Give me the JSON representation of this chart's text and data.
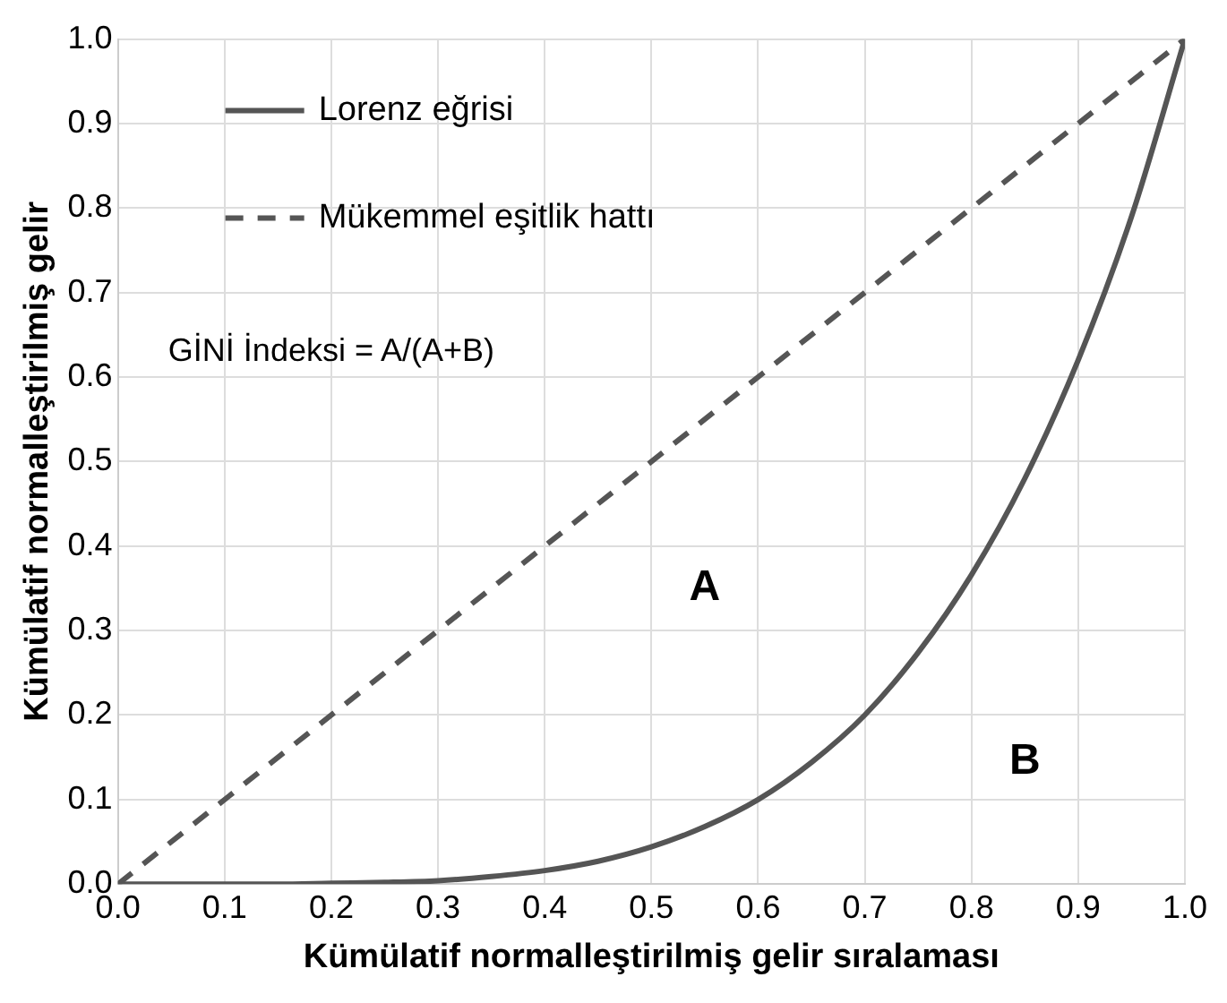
{
  "chart_data": {
    "type": "line",
    "xlabel": "Kümülatif normalleştirilmiş gelir sıralaması",
    "ylabel": "Kümülatif normalleştirilmiş gelir",
    "xlim": [
      0,
      1
    ],
    "ylim": [
      0,
      1
    ],
    "xticks": [
      {
        "value": 0,
        "label": "0.0"
      },
      0.1,
      0.2,
      0.3,
      0.4,
      0.5,
      0.6,
      0.7,
      0.8,
      0.9,
      {
        "value": 1,
        "label": "1.0"
      }
    ],
    "yticks": [
      {
        "value": 0,
        "label": "0.0"
      },
      0.1,
      0.2,
      0.3,
      0.4,
      0.5,
      0.6,
      0.7,
      0.8,
      0.9,
      {
        "value": 1,
        "label": "1.0"
      }
    ],
    "grid": true,
    "legend": "top left",
    "marker": "none",
    "series": [
      {
        "name": "Lorenz eğrisi",
        "color": "#555555",
        "line_style": "solid",
        "x": [
          0,
          0.05,
          0.1,
          0.15,
          0.2,
          0.25,
          0.3,
          0.35,
          0.4,
          0.45,
          0.5,
          0.55,
          0.6,
          0.65,
          0.7,
          0.75,
          0.8,
          0.85,
          0.9,
          0.95,
          1
        ],
        "values": [
          0,
          0,
          0,
          0,
          0.001,
          0.002,
          0.004,
          0.009,
          0.016,
          0.027,
          0.044,
          0.068,
          0.1,
          0.144,
          0.2,
          0.274,
          0.366,
          0.48,
          0.62,
          0.79,
          1
        ]
      },
      {
        "name": "Mükemmel eşitlik hattı",
        "color": "#555555",
        "line_style": "dashed",
        "x": [
          0,
          1
        ],
        "values": [
          0,
          1
        ]
      }
    ],
    "annotations": [
      "GİNİ İndeksi = A/(A+B)",
      "A",
      "B"
    ]
  }
}
